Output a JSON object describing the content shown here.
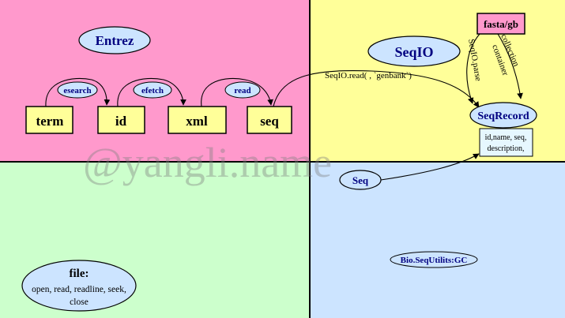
{
  "quadrants": {
    "top_left_color": "#ff99cc",
    "top_right_color": "#ffff99",
    "bottom_left_color": "#ccffcc",
    "bottom_right_color": "#cce4ff"
  },
  "entrez": {
    "title": "Entrez",
    "boxes": {
      "term": "term",
      "id": "id",
      "xml": "xml",
      "seq": "seq"
    },
    "arrows": {
      "esearch": "esearch",
      "efetch": "efetch",
      "read": "read"
    }
  },
  "seqio": {
    "title": "SeqIO",
    "source_box": "fasta/gb",
    "seqrecord": "SeqRecord",
    "attributes": [
      "id,name, seq,",
      "description,"
    ],
    "parse_label": "SeqIO.parse",
    "collection_label": "collection",
    "container_label": "container",
    "read_call": "SeqIO.read( , `genbank`)"
  },
  "seq": {
    "label": "Seq"
  },
  "file": {
    "title": "file:",
    "methods": [
      "open, read, readline, seek,",
      "close"
    ]
  },
  "utils": {
    "label": "Bio.SeqUtilits:GC"
  },
  "watermark": "@yangli.name",
  "colors": {
    "box_fill": "#ffff99",
    "ellipse_fill": "#cce4ff",
    "source_fill": "#ff99cc",
    "record_box_fill": "#e6f7ff",
    "text_blue": "#000080"
  }
}
